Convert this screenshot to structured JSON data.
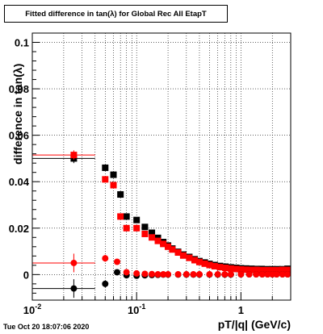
{
  "title": "Fitted difference in tan(λ) for Global Rec All EtapT",
  "datestamp": "Tue Oct 20 18:07:06 2020",
  "colors": {
    "series_black": "#000000",
    "series_red": "#ff0000"
  },
  "chart_data": {
    "type": "scatter",
    "title": "Fitted difference in tan(λ) for Global Rec All EtapT",
    "xlabel": "pT/|q| (GeV/c)",
    "ylabel": "difference in tan(λ)",
    "xscale": "log",
    "xlim": [
      0.01,
      3.0
    ],
    "ylim": [
      -0.011,
      0.104
    ],
    "grid": true,
    "x_ticks": [
      {
        "value": 0.01,
        "label": "10",
        "exp": "-2"
      },
      {
        "value": 0.1,
        "label": "10",
        "exp": "-1"
      },
      {
        "value": 1,
        "label": "1",
        "exp": ""
      }
    ],
    "y_ticks": [
      {
        "value": 0,
        "label": "0"
      },
      {
        "value": 0.02,
        "label": "0.02"
      },
      {
        "value": 0.04,
        "label": "0.04"
      },
      {
        "value": 0.06,
        "label": "0.06"
      },
      {
        "value": 0.08,
        "label": "0.08"
      },
      {
        "value": 0.1,
        "label": "0.1"
      }
    ],
    "series": [
      {
        "color": "#000000",
        "marker": "square",
        "x": [
          0.025,
          0.05,
          0.06,
          0.07,
          0.08,
          0.1,
          0.12,
          0.14,
          0.16,
          0.18,
          0.2,
          0.22,
          0.25,
          0.28,
          0.32,
          0.36,
          0.4,
          0.45,
          0.5,
          0.56,
          0.63,
          0.71,
          0.8,
          0.9,
          1.0,
          1.12,
          1.26,
          1.41,
          1.58,
          1.78,
          2.0,
          2.24,
          2.5,
          2.8
        ],
        "y": [
          0.05,
          0.046,
          0.043,
          0.0345,
          0.025,
          0.0235,
          0.0205,
          0.018,
          0.0158,
          0.014,
          0.0125,
          0.0112,
          0.0098,
          0.0086,
          0.0076,
          0.0066,
          0.0058,
          0.0052,
          0.0046,
          0.0041,
          0.0037,
          0.0034,
          0.0031,
          0.0029,
          0.0027,
          0.0026,
          0.0025,
          0.0024,
          0.0024,
          0.0023,
          0.0023,
          0.0023,
          0.0023,
          0.0025
        ],
        "yerr": [
          0.002,
          0.001,
          0.001,
          0.0008,
          0.0006,
          0.0005,
          0.0004,
          0.0004,
          0.0003,
          0.0003,
          0.0003,
          0.0003,
          0.0002,
          0.0002,
          0.0002,
          0.0002,
          0.0002,
          0.0002,
          0.0002,
          0.0002,
          0.0002,
          0.0002,
          0.0002,
          0.0002,
          0.0002,
          0.0002,
          0.0002,
          0.0002,
          0.0002,
          0.0002,
          0.0002,
          0.0002,
          0.0002,
          0.0002
        ],
        "xerr": [
          [
            0.01,
            0.04
          ]
        ]
      },
      {
        "color": "#ff0000",
        "marker": "square",
        "x": [
          0.025,
          0.05,
          0.06,
          0.07,
          0.08,
          0.1,
          0.12,
          0.14,
          0.16,
          0.18,
          0.2,
          0.22,
          0.25,
          0.28,
          0.32,
          0.36,
          0.4,
          0.45,
          0.5,
          0.56,
          0.63,
          0.71,
          0.8,
          0.9,
          1.0,
          1.12,
          1.26,
          1.41,
          1.58,
          1.78,
          2.0,
          2.24,
          2.5,
          2.8
        ],
        "y": [
          0.0515,
          0.041,
          0.0385,
          0.025,
          0.02,
          0.02,
          0.0175,
          0.016,
          0.0145,
          0.0132,
          0.012,
          0.0108,
          0.0095,
          0.0082,
          0.0072,
          0.0062,
          0.0054,
          0.0047,
          0.0041,
          0.0036,
          0.0032,
          0.0029,
          0.0026,
          0.0024,
          0.0022,
          0.0021,
          0.002,
          0.002,
          0.0019,
          0.0019,
          0.0019,
          0.0019,
          0.002,
          0.002
        ],
        "yerr": [
          0.002,
          0.001,
          0.001,
          0.0008,
          0.0006,
          0.0005,
          0.0004,
          0.0004,
          0.0003,
          0.0003,
          0.0003,
          0.0003,
          0.0002,
          0.0002,
          0.0002,
          0.0002,
          0.0002,
          0.0002,
          0.0002,
          0.0002,
          0.0002,
          0.0002,
          0.0002,
          0.0002,
          0.0002,
          0.0002,
          0.0002,
          0.0002,
          0.0002,
          0.0002,
          0.0002,
          0.0002,
          0.0002,
          0.0002
        ],
        "xerr": [
          [
            0.01,
            0.04
          ]
        ]
      },
      {
        "color": "#000000",
        "marker": "circle",
        "x": [
          0.025,
          0.05,
          0.065,
          0.08,
          0.1,
          0.12,
          0.14,
          0.16,
          0.18,
          0.2,
          0.25,
          0.3,
          0.35,
          0.4,
          0.5,
          0.6,
          0.7,
          0.8,
          1.0,
          1.2,
          1.4,
          1.6,
          1.8,
          2.0,
          2.2,
          2.5,
          2.8
        ],
        "y": [
          -0.006,
          -0.004,
          0.001,
          -0.0003,
          -0.0005,
          -0.0003,
          -0.0002,
          -0.0001,
          0.0,
          0.0,
          0.0,
          0.0,
          0.0,
          0.0,
          0.0,
          0.0,
          0.0,
          0.0,
          0.0001,
          0.0001,
          0.0001,
          0.0001,
          0.0001,
          0.0001,
          0.0001,
          0.0001,
          0.0001
        ],
        "yerr": [
          0.004,
          0.0015,
          0.001,
          0.0008,
          0.0005,
          0.0004,
          0.0003,
          0.0003,
          0.0002,
          0.0002,
          0.0002,
          0.0002,
          0.0002,
          0.0002,
          0.0002,
          0.0002,
          0.0002,
          0.0002,
          0.0002,
          0.0002,
          0.0002,
          0.0002,
          0.0002,
          0.0002,
          0.0002,
          0.0002,
          0.0002
        ],
        "xerr": [
          [
            0.01,
            0.04
          ]
        ]
      },
      {
        "color": "#ff0000",
        "marker": "circle",
        "x": [
          0.025,
          0.05,
          0.065,
          0.08,
          0.1,
          0.12,
          0.14,
          0.16,
          0.18,
          0.2,
          0.25,
          0.3,
          0.35,
          0.4,
          0.5,
          0.6,
          0.7,
          0.8,
          1.0,
          1.2,
          1.4,
          1.6,
          1.8,
          2.0,
          2.2,
          2.5,
          2.8
        ],
        "y": [
          0.005,
          0.007,
          0.0055,
          0.001,
          0.0005,
          0.0003,
          0.0002,
          0.0001,
          0.0001,
          0.0001,
          0.0001,
          0.0001,
          0.0001,
          0.0001,
          0.0001,
          0.0001,
          0.0001,
          0.0001,
          0.0001,
          0.0001,
          0.0001,
          0.0001,
          0.0001,
          0.0001,
          0.0001,
          0.0001,
          0.0001
        ],
        "yerr": [
          0.004,
          0.0015,
          0.001,
          0.0008,
          0.0005,
          0.0004,
          0.0003,
          0.0003,
          0.0002,
          0.0002,
          0.0002,
          0.0002,
          0.0002,
          0.0002,
          0.0002,
          0.0002,
          0.0002,
          0.0002,
          0.0002,
          0.0002,
          0.0002,
          0.0002,
          0.0002,
          0.0002,
          0.0002,
          0.0002,
          0.0002
        ],
        "xerr": [
          [
            0.01,
            0.04
          ]
        ]
      }
    ]
  }
}
